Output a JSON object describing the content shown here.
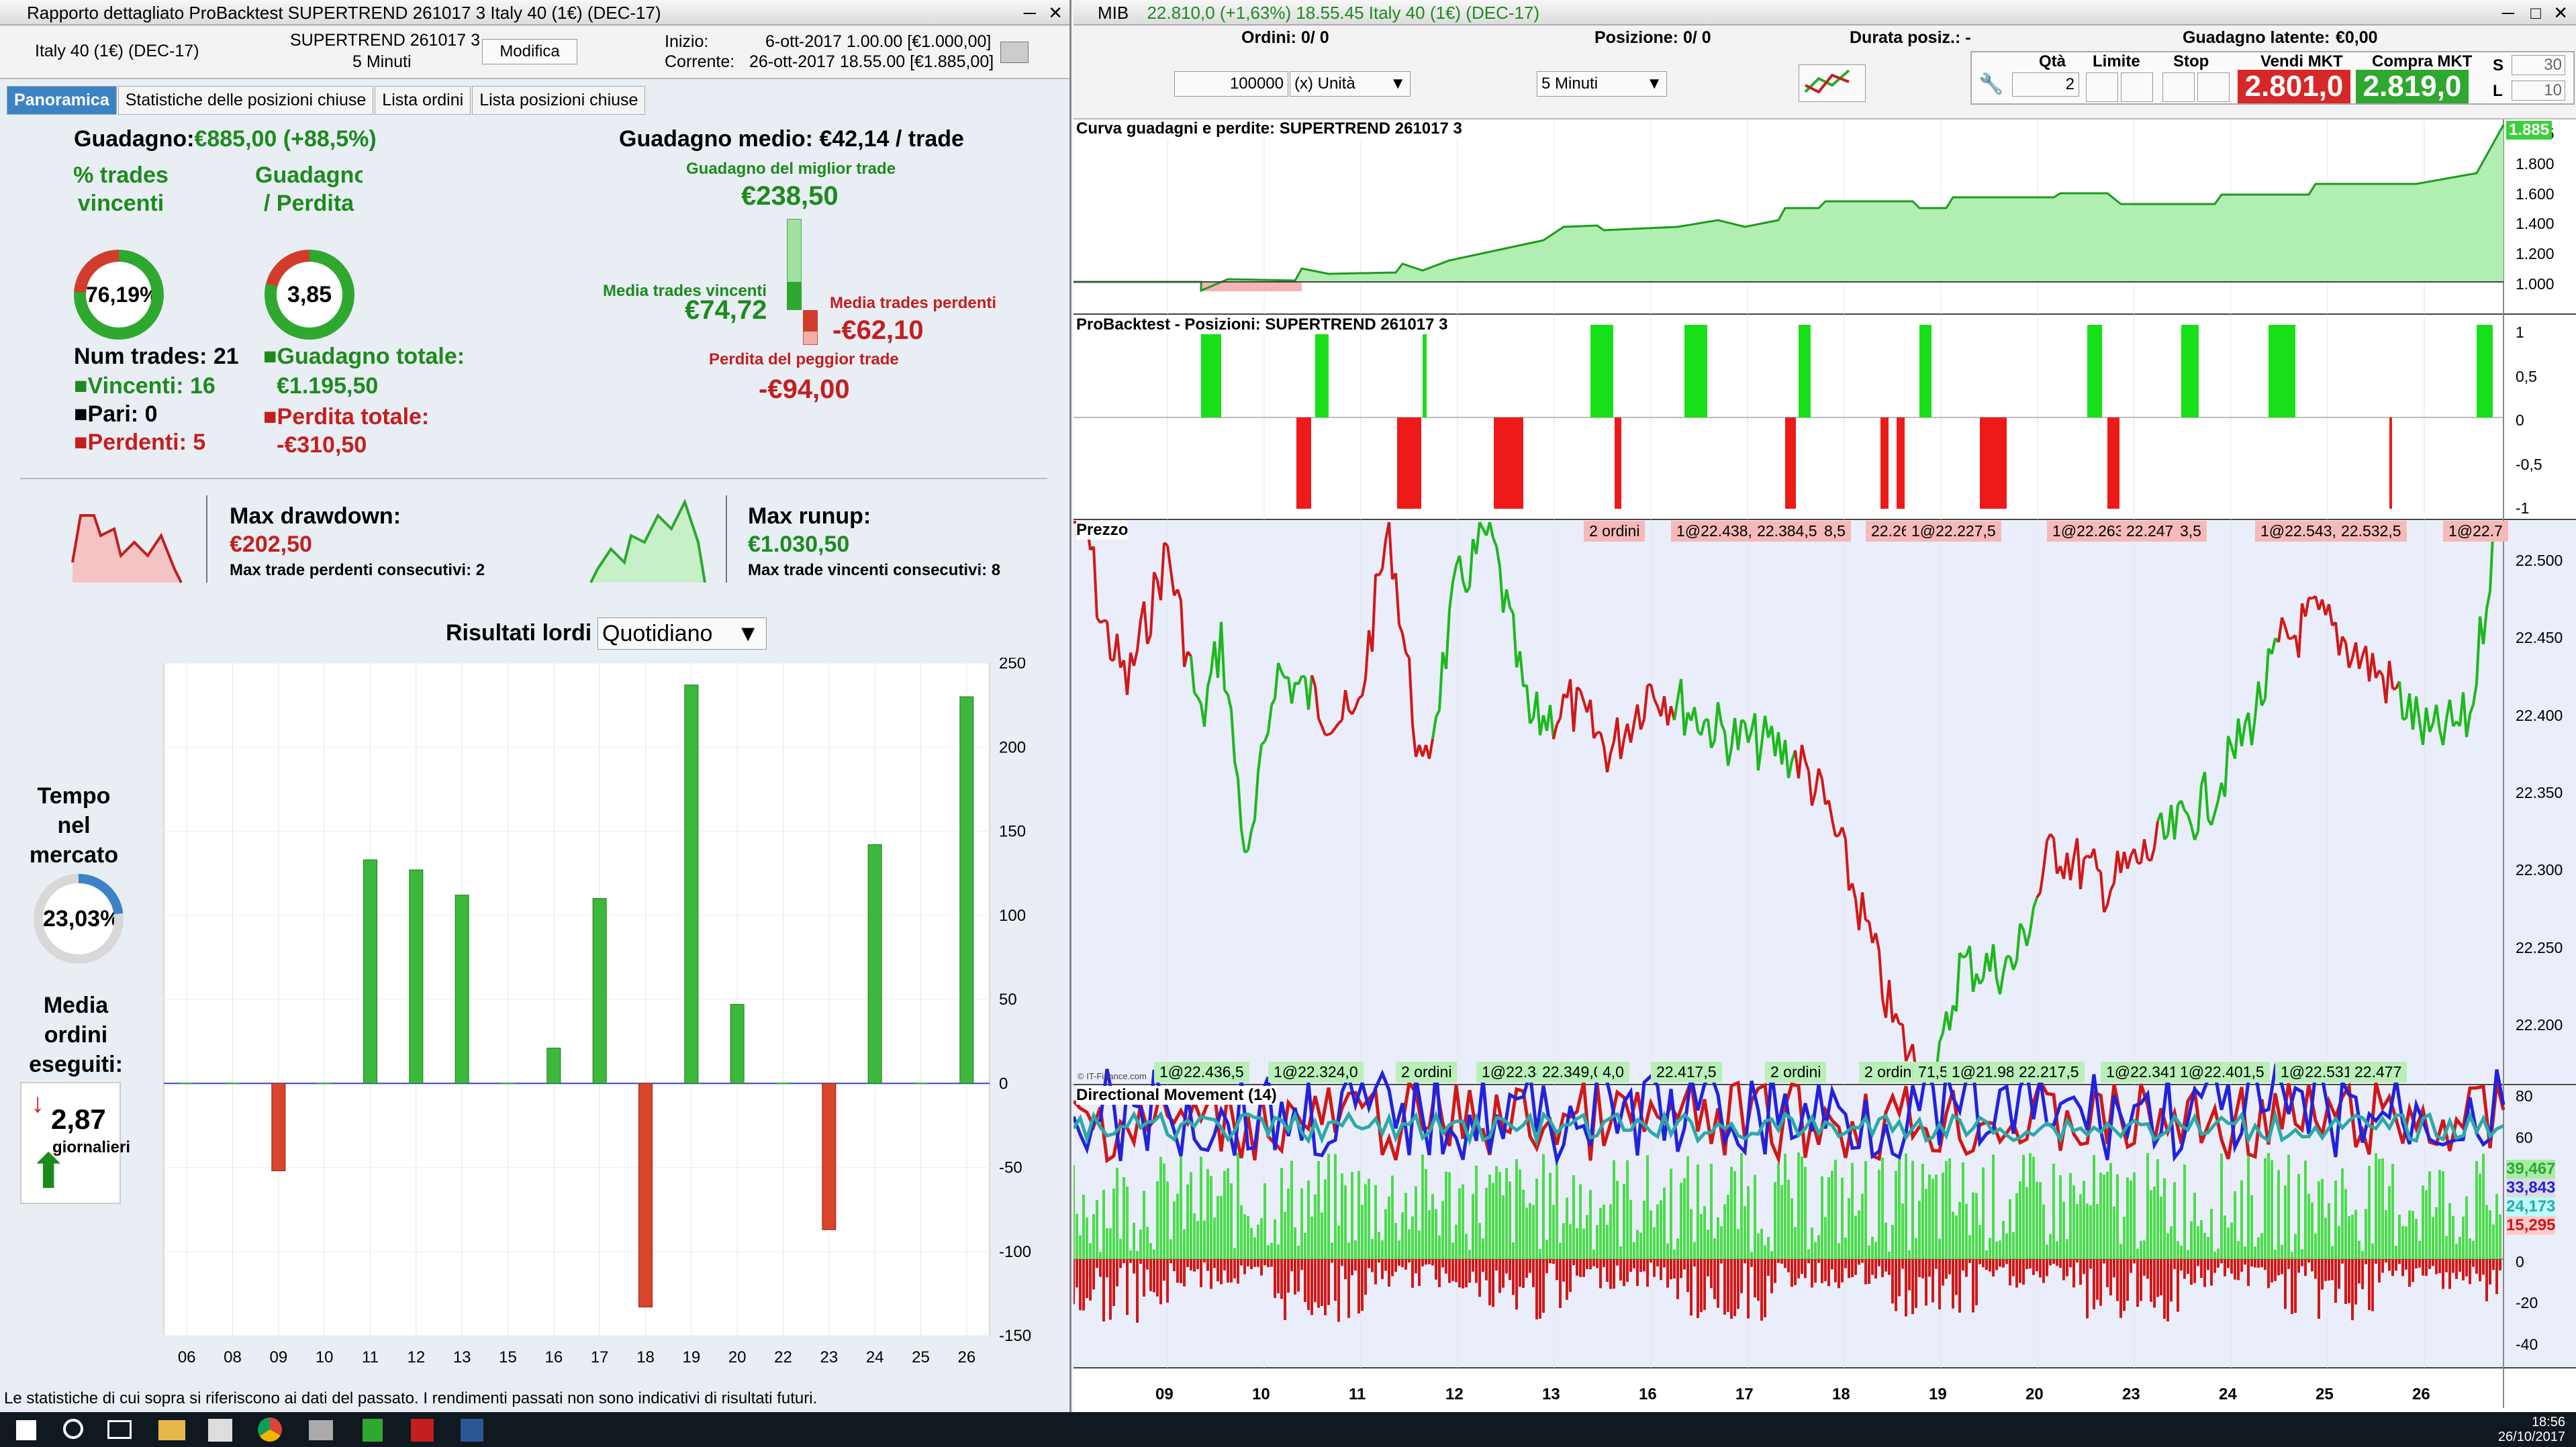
{
  "left_window": {
    "title": "Rapporto dettagliato  ProBacktest  SUPERTREND 261017 3  Italy 40 (1€) (DEC-17)",
    "instrument": "Italy 40 (1€) (DEC-17)",
    "strategy": "SUPERTREND 261017 3",
    "timeframe": "5 Minuti",
    "modify_btn": "Modifica",
    "start_label": "Inizio:",
    "start_value": "6-ott-2017 1.00.00 [€1.000,00]",
    "current_label": "Corrente:",
    "current_value": "26-ott-2017 18.55.00 [€1.885,00]",
    "tabs": [
      "Panoramica",
      "Statistiche delle posizioni chiuse",
      "Lista ordini",
      "Lista posizioni chiuse"
    ],
    "gain_label": "Guadagno:",
    "gain_value": "€885,00 (+88,5%)",
    "pct_win_label": "% trades vincenti",
    "pct_win_value": "76,19%",
    "gain_loss_label": "Guadagno / Perdita",
    "gain_loss_value": "3,85",
    "num_trades": "Num trades: 21",
    "winners": "Vincenti: 16",
    "even": "Pari: 0",
    "losers": "Perdenti: 5",
    "total_gain_label": "Guadagno totale:",
    "total_gain_value": "€1.195,50",
    "total_loss_label": "Perdita totale:",
    "total_loss_value": "-€310,50",
    "avg_gain": "Guadagno medio: €42,14 / trade",
    "best_label": "Guadagno del miglior trade",
    "best_value": "€238,50",
    "avg_win_label": "Media trades vincenti",
    "avg_win_value": "€74,72",
    "avg_loss_label": "Media trades perdenti",
    "avg_loss_value": "-€62,10",
    "worst_label": "Perdita del peggior trade",
    "worst_value": "-€94,00",
    "dd_label": "Max drawdown:",
    "dd_value": "€202,50",
    "dd_consec": "Max trade perdenti consecutivi:  2",
    "ru_label": "Max runup:",
    "ru_value": "€1.030,50",
    "ru_consec": "Max trade vincenti consecutivi: 8",
    "tempo_label": "Tempo nel mercato",
    "tempo_value": "23,03%",
    "media_label": "Media ordini eseguiti:",
    "media_value": "2,87",
    "media_unit": "giornalieri",
    "results_title": "Risultati lordi",
    "results_mode": "Quotidiano",
    "disclaimer": "Le statistiche di cui sopra si riferiscono ai dati del passato. I rendimenti passati non sono indicativi di risultati futuri."
  },
  "chart_data": [
    {
      "type": "bar",
      "title": "Risultati lordi",
      "categories": [
        "06",
        "08",
        "09",
        "10",
        "11",
        "12",
        "13",
        "15",
        "16",
        "17",
        "18",
        "19",
        "20",
        "22",
        "23",
        "24",
        "25",
        "26"
      ],
      "values": [
        0,
        0,
        -52,
        0,
        133,
        127,
        112,
        0,
        21,
        110,
        -133,
        237,
        47,
        0,
        -87,
        142,
        0,
        230
      ],
      "ylim": [
        -150,
        250
      ],
      "yticks": [
        250,
        200,
        150,
        100,
        50,
        0,
        -50,
        -100,
        -150
      ]
    }
  ],
  "right_window": {
    "title": "MIB",
    "quote": "22.810,0 (+1,63%) 18.55.45 Italy 40 (1€) (DEC-17)",
    "orders_label": "Ordini: 0",
    "orders_b": "/ 0",
    "position_label": "Posizione: 0",
    "position_b": "/ 0",
    "duration_label": "Durata posiz.: -",
    "latent_label": "Guadagno latente:",
    "latent_value": "€0,00",
    "qty_value": "100000",
    "unit": "(x) Unità",
    "tf": "5 Minuti",
    "qty_label": "Qtà",
    "qty_num": "2",
    "limit_label": "Limite",
    "stop_label": "Stop",
    "sell_label": "Vendi MKT",
    "sell_price": "2.801,0",
    "buy_label": "Compra MKT",
    "buy_price": "2.819,0",
    "s_label": "S",
    "s_val": "30",
    "l_label": "L",
    "l_val": "10",
    "equity_title": "Curva guadagni e perdite: SUPERTREND 261017 3",
    "equity_ticks": [
      "1.885",
      "1.800",
      "1.600",
      "1.400",
      "1.200",
      "1.000"
    ],
    "pos_title": "ProBacktest - Posizioni: SUPERTREND 261017 3",
    "pos_ticks": [
      "1",
      "0,5",
      "0",
      "-0,5",
      "-1"
    ],
    "price_title": "Prezzo",
    "price_ticks": [
      "22.500",
      "22.450",
      "22.400",
      "22.350",
      "22.300",
      "22.250",
      "22.200"
    ],
    "price_tags_top": [
      "2 ordini",
      "1@22.438,5",
      "22.384,5",
      "8,5",
      "22.261,0",
      "1@22.227,5",
      "1@22.263,5",
      "22.247,5",
      "3,5",
      "1@22.543,5",
      "22.532,5",
      "1@22.7"
    ],
    "price_tags_bottom": [
      "1@22.436,5",
      "1@22.324,0",
      "2 ordini",
      "1@22.341,5",
      "22.349,0",
      "4,0",
      "22.417,5",
      "2 ordini",
      "2 ordini",
      "71,5",
      "1@21.989,0",
      "22.217,5",
      "1@22.341,5",
      "1@22.401,5",
      "1@22.531,5",
      "22.477"
    ],
    "dm_title": "Directional Movement (14)",
    "dm_ticks": [
      "80",
      "60",
      "40",
      "20",
      "0",
      "-20",
      "-40"
    ],
    "dm_values": [
      "39,467",
      "33,843",
      "24,173",
      "15,295"
    ],
    "x_dates": [
      "09",
      "10",
      "11",
      "12",
      "13",
      "16",
      "17",
      "18",
      "19",
      "20",
      "23",
      "24",
      "25",
      "26"
    ],
    "copyright": "© IT-Finance.com",
    "clock_time": "18:56",
    "clock_date": "26/10/2017"
  }
}
